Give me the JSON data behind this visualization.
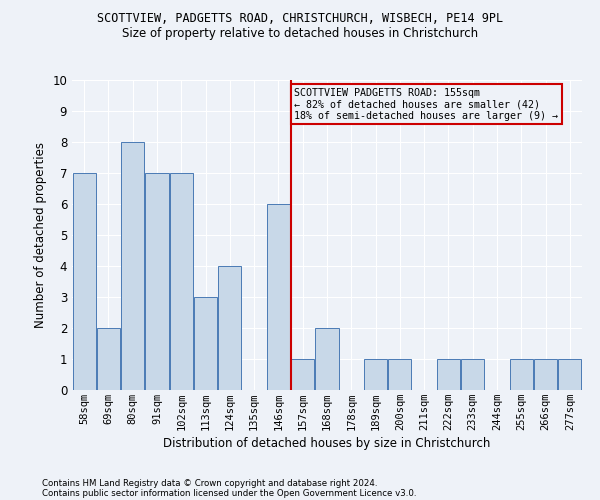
{
  "title": "SCOTTVIEW, PADGETTS ROAD, CHRISTCHURCH, WISBECH, PE14 9PL",
  "subtitle": "Size of property relative to detached houses in Christchurch",
  "xlabel": "Distribution of detached houses by size in Christchurch",
  "ylabel": "Number of detached properties",
  "footnote1": "Contains HM Land Registry data © Crown copyright and database right 2024.",
  "footnote2": "Contains public sector information licensed under the Open Government Licence v3.0.",
  "categories": [
    "58sqm",
    "69sqm",
    "80sqm",
    "91sqm",
    "102sqm",
    "113sqm",
    "124sqm",
    "135sqm",
    "146sqm",
    "157sqm",
    "168sqm",
    "178sqm",
    "189sqm",
    "200sqm",
    "211sqm",
    "222sqm",
    "233sqm",
    "244sqm",
    "255sqm",
    "266sqm",
    "277sqm"
  ],
  "values": [
    7,
    2,
    8,
    7,
    7,
    3,
    4,
    0,
    6,
    1,
    2,
    0,
    1,
    1,
    0,
    1,
    1,
    0,
    1,
    1,
    1
  ],
  "bar_color": "#c8d8e8",
  "bar_edge_color": "#4a7ab5",
  "ylim": [
    0,
    10
  ],
  "yticks": [
    0,
    1,
    2,
    3,
    4,
    5,
    6,
    7,
    8,
    9,
    10
  ],
  "vline_color": "#cc0000",
  "annotation_text": "SCOTTVIEW PADGETTS ROAD: 155sqm\n← 82% of detached houses are smaller (42)\n18% of semi-detached houses are larger (9) →",
  "annotation_box_color": "#cc0000",
  "bg_color": "#eef2f8",
  "grid_color": "#ffffff"
}
